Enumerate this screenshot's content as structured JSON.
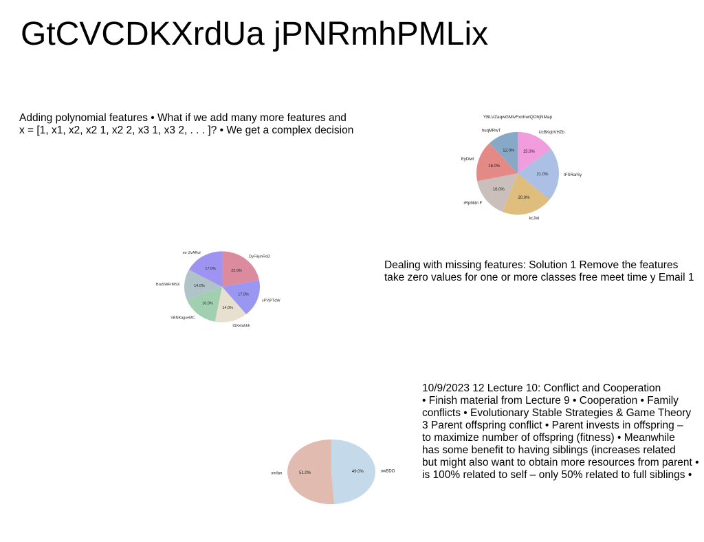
{
  "page": {
    "title": "GtCVCDKXrdUa jPNRmhPMLix"
  },
  "texts": {
    "block1": [
      "Adding polynomial features • What if we add many more features and",
      "x = [1, x1, x2, x2 1, x2 2, x3 1, x3 2, . . . ]? • We get a complex decision"
    ],
    "block2": [
      "Dealing with missing features: Solution 1 Remove the features",
      "take zero values for one or more classes free meet time y Email 1"
    ],
    "block3": [
      "10/9/2023 12 Lecture 10: Conflict and Cooperation",
      "• Finish material from Lecture 9 • Cooperation • Family",
      "conflicts • Evolutionary Stable Strategies & Game Theory",
      "3 Parent offspring conflict • Parent invests in offspring –",
      "to maximize number of offspring (fitness) • Meanwhile",
      "has some benefit to having siblings (increases related",
      "but might also want to obtain more resources from parent •",
      "is 100% related to self – only 50% related to full siblings •"
    ]
  },
  "chart_data": [
    {
      "type": "pie",
      "title": "YBLVZaqwGMlvFxnhwlQOhjNMap",
      "labels": [
        "UcBKqbVHZb",
        "tFSRarSy",
        "kcJwi",
        "rRpMdn F",
        "EyDiwl",
        "huqMRwT"
      ],
      "values": [
        15.0,
        21.0,
        20.0,
        16.0,
        16.0,
        12.0
      ],
      "value_labels": [
        "15.0%",
        "21.0%",
        "20.0%",
        "16.0%",
        "16.0%",
        "12.0%"
      ],
      "colors": [
        "#F09CDD",
        "#ABC0E4",
        "#DFBD7D",
        "#CABFBA",
        "#E48A86",
        "#87A9C7"
      ],
      "start": "top",
      "direction": "clockwise"
    },
    {
      "type": "pie",
      "title": "",
      "labels": [
        "DyFikjmRoD",
        "cPVjPTdW",
        "tSXxfahhh",
        "VBNKagseMC",
        "BraSWFrMSX",
        "mr ZvARul"
      ],
      "values": [
        22.0,
        17.0,
        14.0,
        16.0,
        14.0,
        17.0
      ],
      "value_labels": [
        "22.0%",
        "17.0%",
        "14.0%",
        "16.0%",
        "14.0%",
        "17.0%"
      ],
      "colors": [
        "#DC8B9F",
        "#9A97F2",
        "#E7DFCF",
        "#A0D0AF",
        "#AFC3C8",
        "#9E93F1"
      ],
      "start": "top",
      "direction": "clockwise"
    },
    {
      "type": "pie",
      "title": "",
      "labels": [
        "owBDO",
        "xmlan"
      ],
      "values": [
        49.0,
        51.0
      ],
      "value_labels": [
        "49.0%",
        "51.0%"
      ],
      "colors": [
        "#C4D9E9",
        "#E2BBB0"
      ],
      "start": "top",
      "direction": "clockwise"
    }
  ]
}
